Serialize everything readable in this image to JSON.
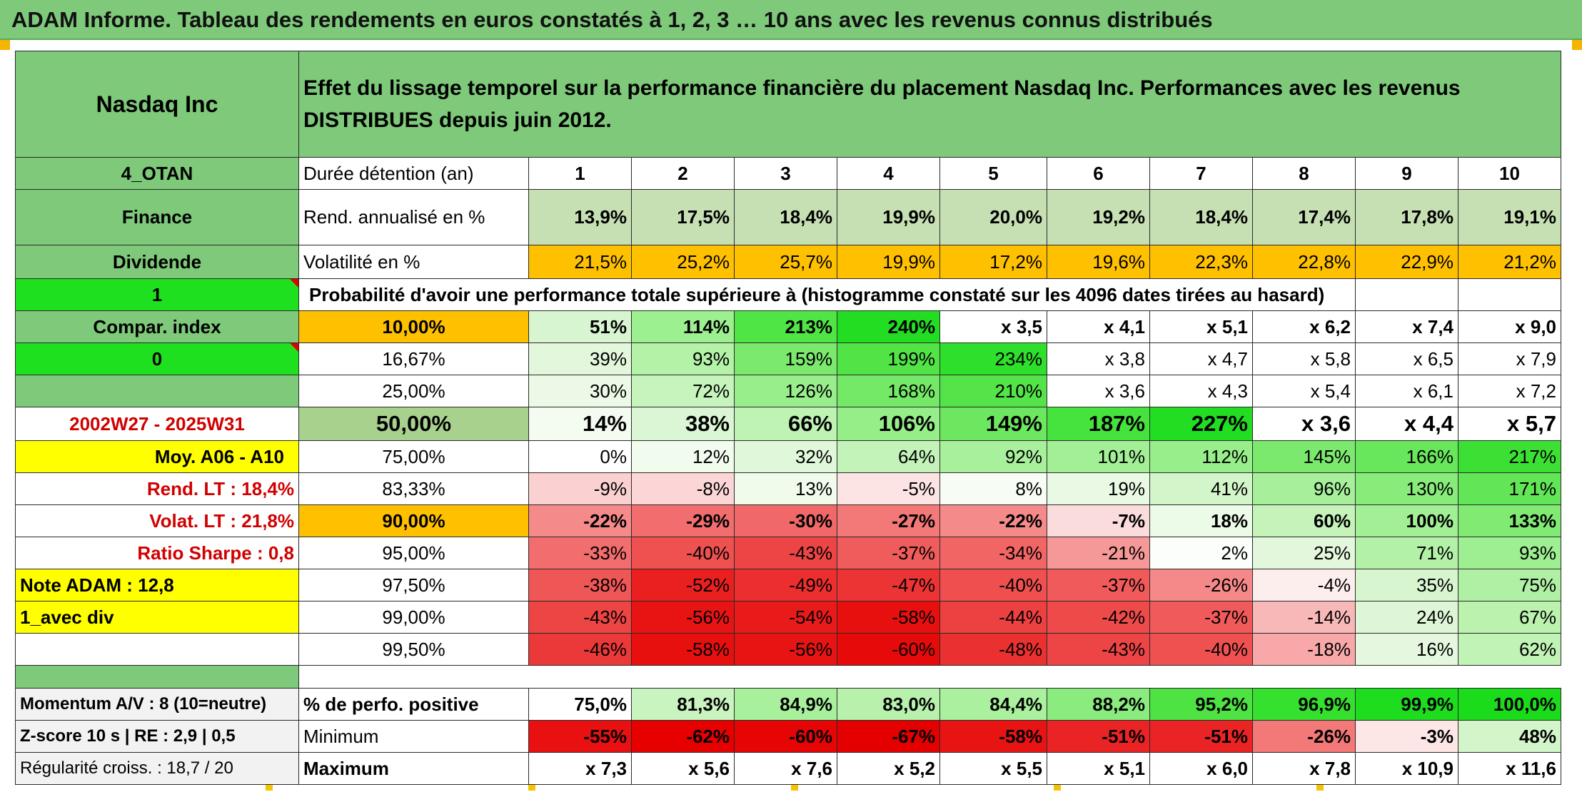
{
  "title": "ADAM Informe. Tableau des rendements en euros constatés à 1, 2, 3 … 10 ans avec les revenus connus distribués",
  "header": {
    "name": "Nasdaq Inc",
    "description": "Effet du lissage temporel sur la performance financière du placement Nasdaq Inc. Performances avec les revenus DISTRIBUES depuis juin 2012."
  },
  "side": {
    "code": "4_OTAN",
    "sector": "Finance",
    "type": "Dividende",
    "flag1": "1",
    "compar": "Compar. index",
    "flag0": "0",
    "period": "2002W27 - 2025W31",
    "moy": "Moy. A06 - A10",
    "rend_lt": "Rend. LT :    18,4%",
    "volat_lt": "Volat. LT :    21,8%",
    "sharpe": "Ratio Sharpe :    0,8",
    "note": "Note ADAM : 12,8",
    "avec_div": "1_avec div",
    "momentum": "Momentum A/V : 8 (10=neutre)",
    "zscore": "Z-score 10 s | RE : 2,9 | 0,5",
    "regularite": "Régularité croiss. : 18,7 / 20"
  },
  "duree": {
    "label": "Durée détention (an)",
    "years": [
      "1",
      "2",
      "3",
      "4",
      "5",
      "6",
      "7",
      "8",
      "9",
      "10"
    ]
  },
  "rend": {
    "label": "Rend. annualisé en %",
    "values": [
      "13,9%",
      "17,5%",
      "18,4%",
      "19,9%",
      "20,0%",
      "19,2%",
      "18,4%",
      "17,4%",
      "17,8%",
      "19,1%"
    ]
  },
  "vol": {
    "label": "Volatilité en %",
    "values": [
      "21,5%",
      "25,2%",
      "25,7%",
      "19,9%",
      "17,2%",
      "19,6%",
      "22,3%",
      "22,8%",
      "22,9%",
      "21,2%"
    ]
  },
  "proba_title": "Probabilité d'avoir une performance totale supérieure à (histogramme constaté sur les 4096 dates tirées au hasard)",
  "prob_rows": [
    {
      "p": "10,00%",
      "v": [
        "51%",
        "114%",
        "213%",
        "240%",
        "x 3,5",
        "x 4,1",
        "x 5,1",
        "x 6,2",
        "x 7,4",
        "x 9,0"
      ]
    },
    {
      "p": "16,67%",
      "v": [
        "39%",
        "93%",
        "159%",
        "199%",
        "234%",
        "x 3,8",
        "x 4,7",
        "x 5,8",
        "x 6,5",
        "x 7,9"
      ]
    },
    {
      "p": "25,00%",
      "v": [
        "30%",
        "72%",
        "126%",
        "168%",
        "210%",
        "x 3,6",
        "x 4,3",
        "x 5,4",
        "x 6,1",
        "x 7,2"
      ]
    },
    {
      "p": "50,00%",
      "v": [
        "14%",
        "38%",
        "66%",
        "106%",
        "149%",
        "187%",
        "227%",
        "x 3,6",
        "x 4,4",
        "x 5,7"
      ]
    },
    {
      "p": "75,00%",
      "v": [
        "0%",
        "12%",
        "32%",
        "64%",
        "92%",
        "101%",
        "112%",
        "145%",
        "166%",
        "217%"
      ]
    },
    {
      "p": "83,33%",
      "v": [
        "-9%",
        "-8%",
        "13%",
        "-5%",
        "8%",
        "19%",
        "41%",
        "96%",
        "130%",
        "171%"
      ]
    },
    {
      "p": "90,00%",
      "v": [
        "-22%",
        "-29%",
        "-30%",
        "-27%",
        "-22%",
        "-7%",
        "18%",
        "60%",
        "100%",
        "133%"
      ]
    },
    {
      "p": "95,00%",
      "v": [
        "-33%",
        "-40%",
        "-43%",
        "-37%",
        "-34%",
        "-21%",
        "2%",
        "25%",
        "71%",
        "93%"
      ]
    },
    {
      "p": "97,50%",
      "v": [
        "-38%",
        "-52%",
        "-49%",
        "-47%",
        "-40%",
        "-37%",
        "-26%",
        "-4%",
        "35%",
        "75%"
      ]
    },
    {
      "p": "99,00%",
      "v": [
        "-43%",
        "-56%",
        "-54%",
        "-58%",
        "-44%",
        "-42%",
        "-37%",
        "-14%",
        "24%",
        "67%"
      ]
    },
    {
      "p": "99,50%",
      "v": [
        "-46%",
        "-58%",
        "-56%",
        "-60%",
        "-48%",
        "-43%",
        "-40%",
        "-18%",
        "16%",
        "62%"
      ]
    }
  ],
  "perf_pos": {
    "label": "% de perfo. positive",
    "values": [
      "75,0%",
      "81,3%",
      "84,9%",
      "83,0%",
      "84,4%",
      "88,2%",
      "95,2%",
      "96,9%",
      "99,9%",
      "100,0%"
    ]
  },
  "minimum": {
    "label": "Minimum",
    "values": [
      "-55%",
      "-62%",
      "-60%",
      "-67%",
      "-58%",
      "-51%",
      "-51%",
      "-26%",
      "-3%",
      "48%"
    ]
  },
  "maximum": {
    "label": "Maximum",
    "values": [
      "x 7,3",
      "x 5,6",
      "x 7,6",
      "x 5,2",
      "x 5,5",
      "x 5,1",
      "x 6,0",
      "x 7,8",
      "x 10,9",
      "x 11,6"
    ]
  },
  "colors": {
    "banner": "#7ec97a",
    "header_green": "#7ec97a",
    "light_green": "#c6e0b4",
    "orange": "#ffc000",
    "bright_green": "#1fe01f",
    "yellow": "#ffff00",
    "gray_green": "#a9d18e"
  }
}
